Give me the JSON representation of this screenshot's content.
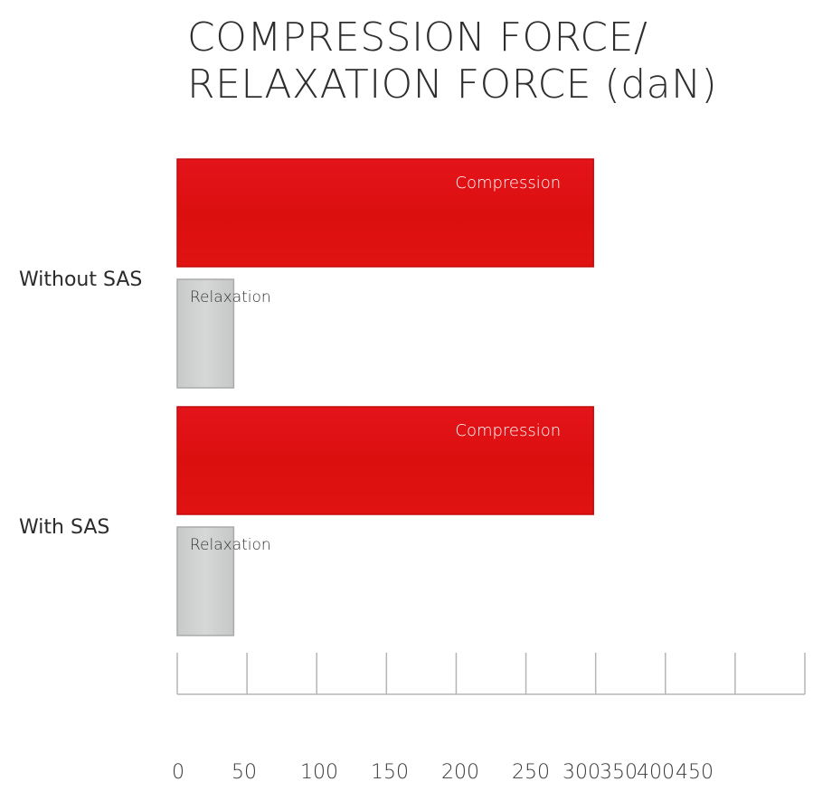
{
  "chart_data": {
    "type": "bar",
    "orientation": "horizontal",
    "title_lines": [
      "COMPRESSION FORCE/",
      "RELAXATION FORCE (daN)"
    ],
    "categories": [
      "Without SAS",
      "With SAS"
    ],
    "series": [
      {
        "name": "Compression",
        "values": [
          295,
          295
        ],
        "color": "#e01010",
        "label_color": "#ffffff"
      },
      {
        "name": "Relaxation",
        "values": [
          40,
          40
        ],
        "color": "#cfd0d0",
        "label_color": "#333333"
      }
    ],
    "xticks": [
      "0",
      "50",
      "100",
      "150",
      "200",
      "250",
      "300",
      "350",
      "400",
      "450"
    ],
    "xlim": [
      0,
      450
    ],
    "grid": false,
    "legend": "none"
  }
}
